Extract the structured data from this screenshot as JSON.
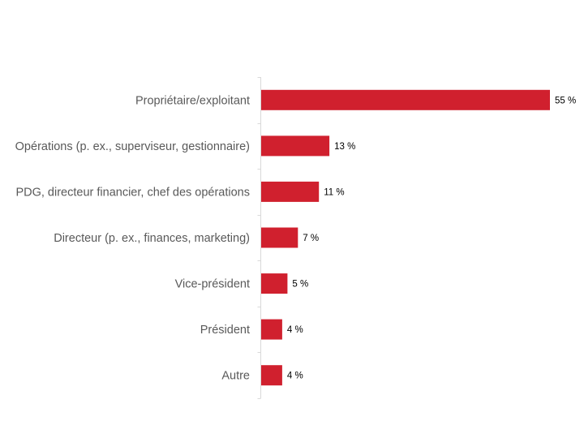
{
  "chart_data": {
    "type": "bar",
    "orientation": "horizontal",
    "title": "",
    "xlabel": "",
    "ylabel": "",
    "categories": [
      "Propriétaire/exploitant",
      "Opérations (p. ex., superviseur, gestionnaire)",
      "PDG, directeur financier, chef des opérations",
      "Directeur (p. ex., finances, marketing)",
      "Vice-président",
      "Président",
      "Autre"
    ],
    "values": [
      55,
      13,
      11,
      7,
      5,
      4,
      4
    ],
    "value_labels": [
      "55 %",
      "13 %",
      "11 %",
      "7 %",
      "5 %",
      "4 %",
      "4 %"
    ],
    "unit": "%",
    "xlim": [
      0,
      55
    ],
    "grid": false,
    "legend": "none",
    "colors": {
      "bar": "#d0202e",
      "axis": "#d9d9d9",
      "category_text": "#595959",
      "value_text": "#000000"
    }
  }
}
